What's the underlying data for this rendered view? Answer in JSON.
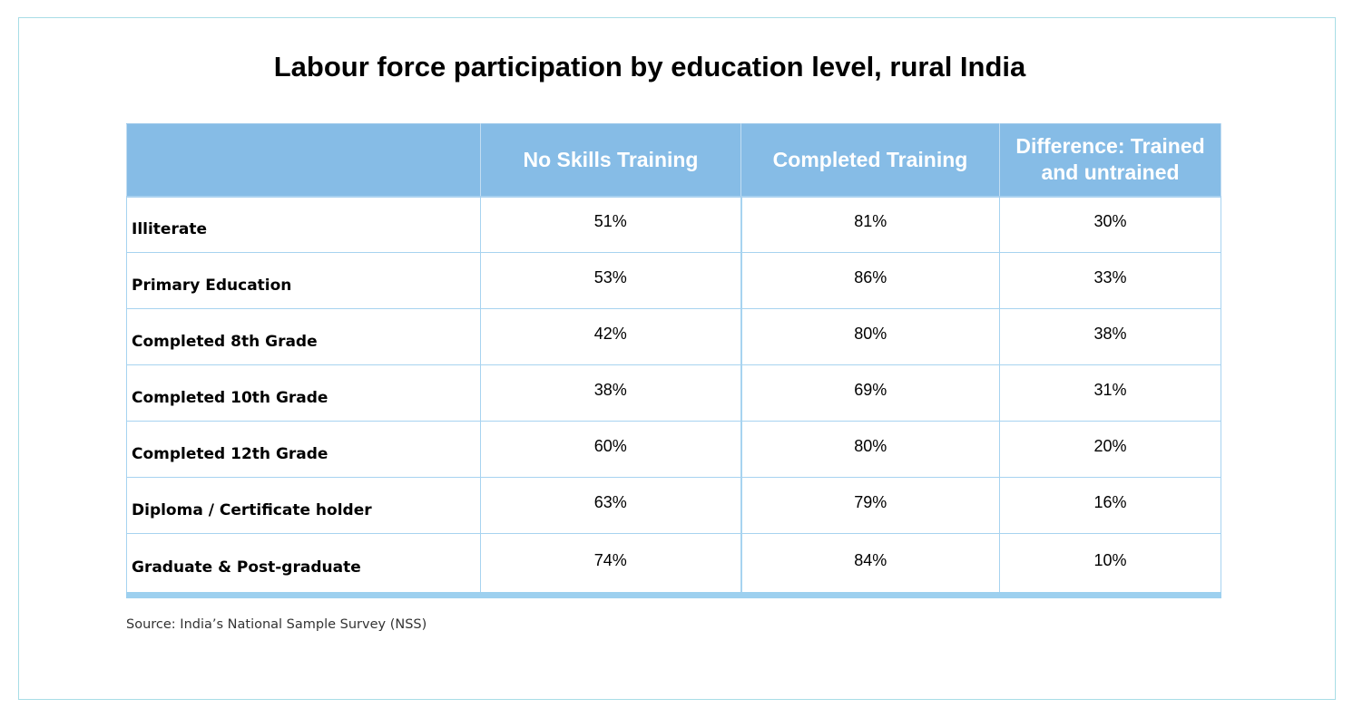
{
  "chart_data": {
    "type": "table",
    "title": "Labour force participation by education level, rural India",
    "columns": [
      "",
      "No Skills Training",
      "Completed Training",
      "Difference: Trained and untrained"
    ],
    "rows": [
      {
        "label": "Illiterate",
        "values": [
          "51%",
          "81%",
          "30%"
        ]
      },
      {
        "label": "Primary Education",
        "values": [
          "53%",
          "86%",
          "33%"
        ]
      },
      {
        "label": "Completed 8th Grade",
        "values": [
          "42%",
          "80%",
          "38%"
        ]
      },
      {
        "label": "Completed 10th Grade",
        "values": [
          "38%",
          "69%",
          "31%"
        ]
      },
      {
        "label": "Completed 12th Grade",
        "values": [
          "60%",
          "80%",
          "20%"
        ]
      },
      {
        "label": "Diploma / Certificate holder",
        "values": [
          "63%",
          "79%",
          "16%"
        ]
      },
      {
        "label": "Graduate &  Post-graduate",
        "values": [
          "74%",
          "84%",
          "10%"
        ]
      }
    ],
    "source": "Source: India’s National Sample Survey (NSS)"
  },
  "colors": {
    "header_bg": "#86bce6",
    "header_text": "#ffffff",
    "grid": "#a7d3f0",
    "bottom_bar": "#9dd0ef",
    "frame": "#a8dde6"
  }
}
